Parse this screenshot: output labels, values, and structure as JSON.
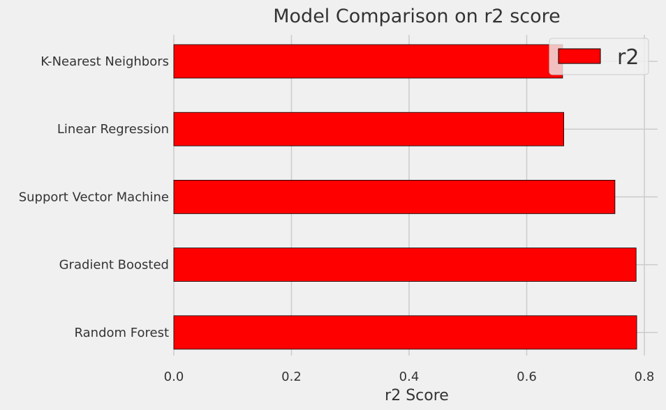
{
  "chart_data": {
    "type": "bar",
    "orientation": "horizontal",
    "title": "Model Comparison on r2 score",
    "xlabel": "r2 Score",
    "ylabel": "",
    "categories": [
      "K-Nearest Neighbors",
      "Linear Regression",
      "Support Vector Machine",
      "Gradient Boosted",
      "Random Forest"
    ],
    "series": [
      {
        "name": "r2",
        "values": [
          0.661,
          0.663,
          0.75,
          0.786,
          0.787
        ],
        "color": "#ff0000"
      }
    ],
    "xlim": [
      0,
      0.82
    ],
    "xticks": [
      "0.0",
      "0.2",
      "0.4",
      "0.6",
      "0.8"
    ],
    "grid": true,
    "legend_position": "top-right",
    "background_color": "#f0f0f0",
    "grid_color": "#cbcbcb",
    "edge_color": "#000000"
  }
}
